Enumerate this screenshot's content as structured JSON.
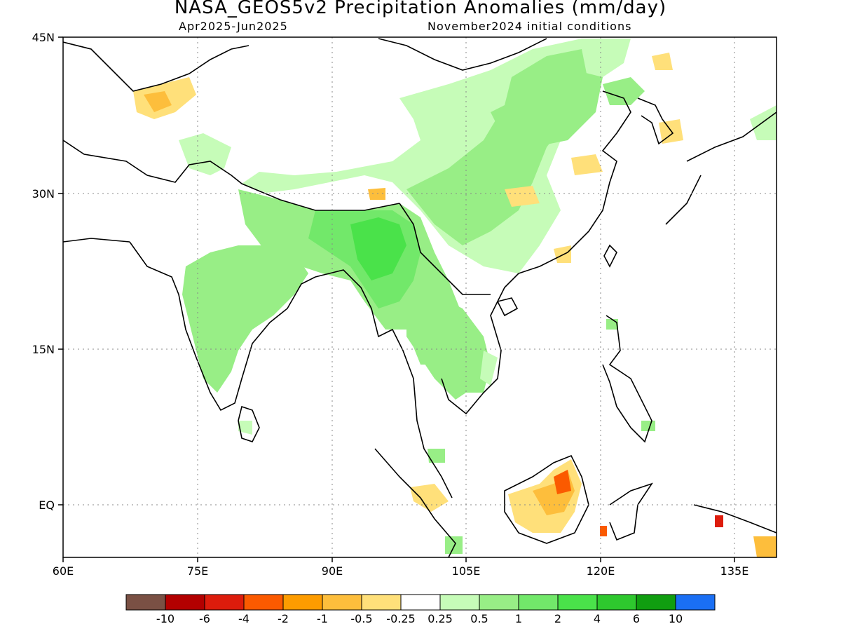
{
  "title": "NASA_GEOS5v2 Precipitation Anomalies (mm/day)",
  "period": "Apr2025-Jun2025",
  "init": "November2024 initial conditions",
  "map": {
    "lon_ticks": [
      "60E",
      "75E",
      "90E",
      "105E",
      "120E",
      "135E"
    ],
    "lat_ticks": [
      "45N",
      "30N",
      "15N",
      "EQ"
    ],
    "lon_range": [
      60,
      140
    ],
    "lat_range": [
      -5,
      45
    ],
    "grid": "dotted"
  },
  "colorbar": {
    "labels": [
      "-10",
      "-6",
      "-4",
      "-2",
      "-1",
      "-0.5",
      "-0.25",
      "0.25",
      "0.5",
      "1",
      "2",
      "4",
      "6",
      "10"
    ],
    "colors": [
      "#7a5044",
      "#b30000",
      "#dd1c0c",
      "#fb5a00",
      "#fd9c00",
      "#fdbe3c",
      "#ffe07a",
      "#ffffff",
      "#c6fcb8",
      "#98ee86",
      "#72e86a",
      "#4ae24a",
      "#2ec82e",
      "#109e10",
      "#1a6ff4"
    ]
  }
}
